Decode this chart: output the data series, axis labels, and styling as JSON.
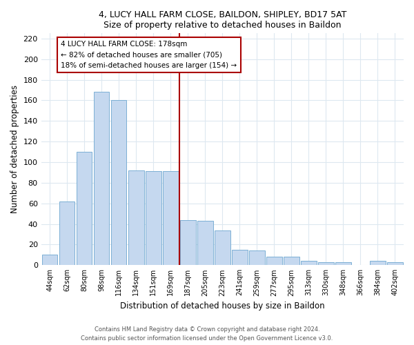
{
  "title": "4, LUCY HALL FARM CLOSE, BAILDON, SHIPLEY, BD17 5AT",
  "subtitle": "Size of property relative to detached houses in Baildon",
  "xlabel": "Distribution of detached houses by size in Baildon",
  "ylabel": "Number of detached properties",
  "bar_labels": [
    "44sqm",
    "62sqm",
    "80sqm",
    "98sqm",
    "116sqm",
    "134sqm",
    "151sqm",
    "169sqm",
    "187sqm",
    "205sqm",
    "223sqm",
    "241sqm",
    "259sqm",
    "277sqm",
    "295sqm",
    "313sqm",
    "330sqm",
    "348sqm",
    "366sqm",
    "384sqm",
    "402sqm"
  ],
  "bar_values": [
    10,
    62,
    110,
    168,
    160,
    92,
    91,
    91,
    44,
    43,
    34,
    15,
    14,
    8,
    8,
    4,
    3,
    3,
    0,
    4,
    3
  ],
  "bar_color": "#c5d8ef",
  "bar_edgecolor": "#7bafd4",
  "vline_color": "#aa0000",
  "annotation_title": "4 LUCY HALL FARM CLOSE: 178sqm",
  "annotation_line1": "← 82% of detached houses are smaller (705)",
  "annotation_line2": "18% of semi-detached houses are larger (154) →",
  "annotation_box_edgecolor": "#aa0000",
  "ylim": [
    0,
    225
  ],
  "yticks": [
    0,
    20,
    40,
    60,
    80,
    100,
    120,
    140,
    160,
    180,
    200,
    220
  ],
  "footer1": "Contains HM Land Registry data © Crown copyright and database right 2024.",
  "footer2": "Contains public sector information licensed under the Open Government Licence v3.0.",
  "bg_color": "#ffffff",
  "plot_bg_color": "#ffffff",
  "grid_color": "#dde8f0"
}
